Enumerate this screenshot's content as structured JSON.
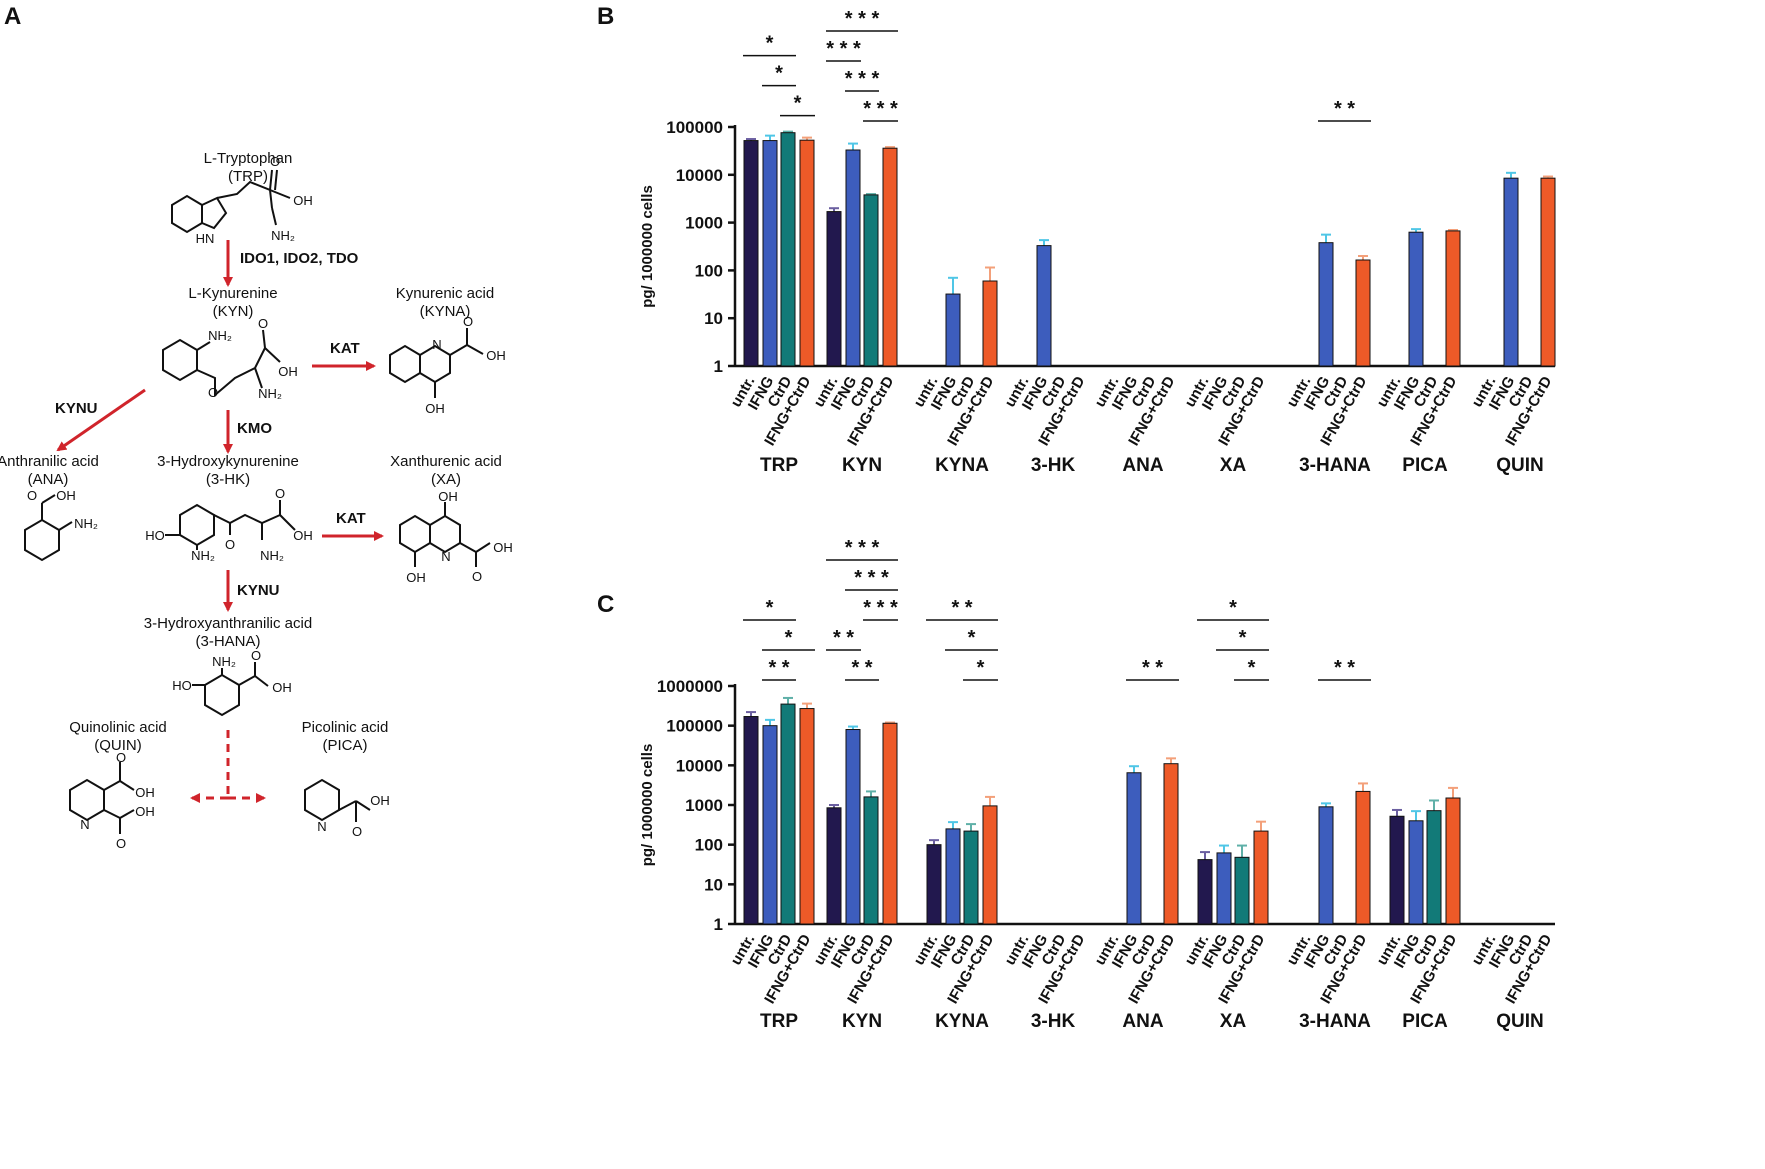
{
  "figure": {
    "panel_a": {
      "letter": "A",
      "compounds": {
        "trp": {
          "name": "L-Tryptophan",
          "abbr": "(TRP)"
        },
        "kyn": {
          "name": "L-Kynurenine",
          "abbr": "(KYN)"
        },
        "kyna": {
          "name": "Kynurenic acid",
          "abbr": "(KYNA)"
        },
        "ana": {
          "name": "Anthranilic acid",
          "abbr": "(ANA)"
        },
        "hk": {
          "name": "3-Hydroxykynurenine",
          "abbr": "(3-HK)"
        },
        "xa": {
          "name": "Xanthurenic acid",
          "abbr": "(XA)"
        },
        "hana": {
          "name": "3-Hydroxyanthranilic acid",
          "abbr": "(3-HANA)"
        },
        "quin": {
          "name": "Quinolinic acid",
          "abbr": "(QUIN)"
        },
        "pica": {
          "name": "Picolinic acid",
          "abbr": "(PICA)"
        }
      },
      "enzymes": {
        "ido": "IDO1, IDO2, TDO",
        "kat1": "KAT",
        "kynu1": "KYNU",
        "kmo": "KMO",
        "kat2": "KAT",
        "kynu2": "KYNU"
      },
      "atoms": {
        "oh": "OH",
        "nh2": "NH₂",
        "hn": "HN",
        "ho": "HO",
        "o": "O",
        "n": "N"
      },
      "arrow_color": "#d0242b"
    },
    "groups": [
      "untr.",
      "IFNG",
      "CtrD",
      "IFNG+CtrD"
    ],
    "colors": [
      "#22184e",
      "#3d5dbd",
      "#127a78",
      "#ee5a28"
    ],
    "error_colors": [
      "#6b5fa0",
      "#4fc6e6",
      "#5fb0a8",
      "#f3a07a"
    ],
    "charts": [
      {
        "letter": "B",
        "ylabel": "pg/ 1000000 cells",
        "scale": "log10",
        "ylim": [
          1,
          100000
        ],
        "yticks": [
          "1",
          "10",
          "100",
          "1000",
          "10000",
          "100000"
        ],
        "categories": [
          "TRP",
          "KYN",
          "KYNA",
          "3-HK",
          "ANA",
          "XA",
          "3-HANA",
          "PICA",
          "QUIN"
        ],
        "chart_data": {
          "type": "bar",
          "title": "",
          "xlabel": "",
          "ylabel": "pg/ 1000000 cells",
          "ylim": [
            1,
            100000
          ],
          "categories": [
            "TRP",
            "KYN",
            "KYNA",
            "3-HK",
            "ANA",
            "XA",
            "3-HANA",
            "PICA",
            "QUIN"
          ],
          "series": [
            {
              "name": "untr.",
              "values": [
                52000,
                1700,
                null,
                null,
                null,
                null,
                null,
                null,
                null
              ],
              "errors": [
                56000,
                2000,
                null,
                null,
                null,
                null,
                null,
                null,
                null
              ]
            },
            {
              "name": "IFNG",
              "values": [
                52000,
                33000,
                32,
                330,
                null,
                null,
                380,
                630,
                8500
              ],
              "errors": [
                66000,
                45000,
                70,
                430,
                null,
                null,
                560,
                730,
                11000
              ]
            },
            {
              "name": "CtrD",
              "values": [
                76000,
                3800,
                null,
                null,
                null,
                null,
                null,
                null,
                null
              ],
              "errors": [
                80000,
                3950,
                null,
                null,
                null,
                null,
                null,
                null,
                null
              ]
            },
            {
              "name": "IFNG+CtrD",
              "values": [
                53000,
                36000,
                60,
                null,
                null,
                null,
                165,
                670,
                8500
              ],
              "errors": [
                60000,
                38000,
                115,
                null,
                null,
                null,
                200,
                700,
                9200
              ]
            }
          ],
          "significance": [
            {
              "category": "TRP",
              "pair": [
                0,
                2
              ],
              "label": "*"
            },
            {
              "category": "TRP",
              "pair": [
                2,
                3
              ],
              "label": "*"
            },
            {
              "category": "TRP",
              "pair": [
                1,
                2
              ],
              "label": "*"
            },
            {
              "category": "KYN",
              "pair": [
                0,
                3
              ],
              "label": "* * *"
            },
            {
              "category": "KYN",
              "pair": [
                2,
                3
              ],
              "label": "* * *"
            },
            {
              "category": "KYN",
              "pair": [
                1,
                2
              ],
              "label": "* * *"
            },
            {
              "category": "KYN",
              "pair": [
                0,
                1
              ],
              "label": "* * *"
            },
            {
              "category": "3-HANA",
              "pair": [
                1,
                3
              ],
              "label": "* *"
            }
          ]
        }
      },
      {
        "letter": "C",
        "ylabel": "pg/ 1000000 cells",
        "scale": "log10",
        "ylim": [
          1,
          1000000
        ],
        "yticks": [
          "1",
          "10",
          "100",
          "1000",
          "10000",
          "100000",
          "1000000"
        ],
        "categories": [
          "TRP",
          "KYN",
          "KYNA",
          "3-HK",
          "ANA",
          "XA",
          "3-HANA",
          "PICA",
          "QUIN"
        ],
        "chart_data": {
          "type": "bar",
          "title": "",
          "xlabel": "",
          "ylabel": "pg/ 1000000 cells",
          "ylim": [
            1,
            1000000
          ],
          "categories": [
            "TRP",
            "KYN",
            "KYNA",
            "3-HK",
            "ANA",
            "XA",
            "3-HANA",
            "PICA",
            "QUIN"
          ],
          "series": [
            {
              "name": "untr.",
              "values": [
                170000,
                850,
                100,
                null,
                null,
                42,
                null,
                520,
                null
              ],
              "errors": [
                220000,
                1000,
                130,
                null,
                null,
                65,
                null,
                750,
                null
              ]
            },
            {
              "name": "IFNG",
              "values": [
                100000,
                80000,
                250,
                null,
                6500,
                62,
                900,
                400,
                null
              ],
              "errors": [
                140000,
                95000,
                370,
                null,
                9500,
                95,
                1100,
                700,
                null
              ]
            },
            {
              "name": "CtrD",
              "values": [
                350000,
                1600,
                220,
                null,
                null,
                48,
                null,
                720,
                null
              ],
              "errors": [
                500000,
                2200,
                330,
                null,
                null,
                95,
                null,
                1300,
                null
              ]
            },
            {
              "name": "IFNG+CtrD",
              "values": [
                270000,
                115000,
                950,
                null,
                11000,
                220,
                2200,
                1500,
                null
              ],
              "errors": [
                360000,
                120000,
                1600,
                null,
                15000,
                380,
                3500,
                2700,
                null
              ]
            }
          ],
          "significance": [
            {
              "category": "TRP",
              "pair": [
                1,
                3
              ],
              "label": "*"
            },
            {
              "category": "TRP",
              "pair": [
                0,
                2
              ],
              "label": "*"
            },
            {
              "category": "TRP",
              "pair": [
                1,
                2
              ],
              "label": "* *"
            },
            {
              "category": "KYN",
              "pair": [
                0,
                3
              ],
              "label": "* * *"
            },
            {
              "category": "KYN",
              "pair": [
                1,
                3
              ],
              "label": "* * *"
            },
            {
              "category": "KYN",
              "pair": [
                1,
                2
              ],
              "label": "* *"
            },
            {
              "category": "KYN",
              "pair": [
                0,
                1
              ],
              "label": "* *"
            },
            {
              "category": "KYN",
              "pair": [
                2,
                3
              ],
              "label": "* * *"
            },
            {
              "category": "KYNA",
              "pair": [
                0,
                3
              ],
              "label": "* *"
            },
            {
              "category": "KYNA",
              "pair": [
                1,
                3
              ],
              "label": "*"
            },
            {
              "category": "KYNA",
              "pair": [
                2,
                3
              ],
              "label": "*"
            },
            {
              "category": "ANA",
              "pair": [
                1,
                3
              ],
              "label": "* *"
            },
            {
              "category": "XA",
              "pair": [
                0,
                3
              ],
              "label": "*"
            },
            {
              "category": "XA",
              "pair": [
                1,
                3
              ],
              "label": "*"
            },
            {
              "category": "XA",
              "pair": [
                2,
                3
              ],
              "label": "*"
            },
            {
              "category": "3-HANA",
              "pair": [
                1,
                3
              ],
              "label": "* *"
            }
          ]
        }
      }
    ]
  }
}
